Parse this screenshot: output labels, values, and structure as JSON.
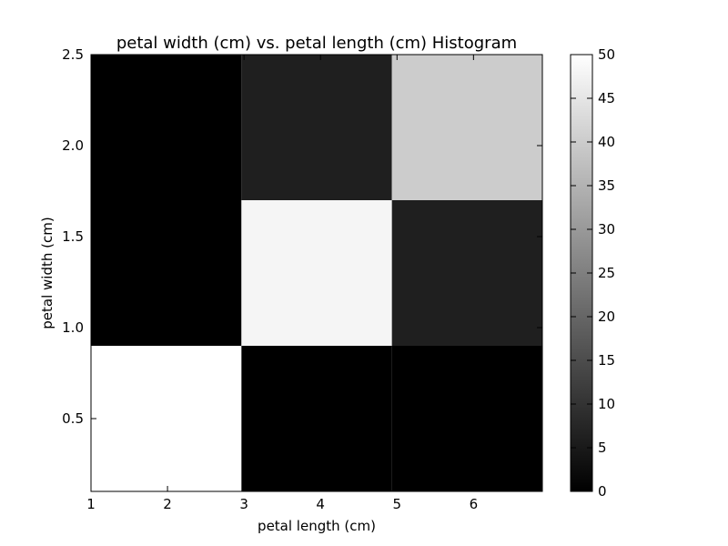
{
  "chart_data": {
    "type": "heatmap",
    "title": "petal width (cm) vs. petal length (cm) Histogram",
    "xlabel": "petal length (cm)",
    "ylabel": "petal width (cm)",
    "xlim": [
      1,
      6.9
    ],
    "ylim": [
      0.1,
      2.5
    ],
    "x_ticks": [
      1,
      2,
      3,
      4,
      5,
      6
    ],
    "y_ticks": [
      0.5,
      1.0,
      1.5,
      2.0,
      2.5
    ],
    "x_bin_edges": [
      1.0,
      2.966667,
      4.933333,
      6.9
    ],
    "y_bin_edges": [
      0.1,
      0.9,
      1.7,
      2.5
    ],
    "counts": [
      [
        50,
        0,
        0
      ],
      [
        0,
        48,
        6
      ],
      [
        0,
        6,
        40
      ]
    ],
    "counts_layout": "rows ordered bottom-to-top by petal width bin, columns left-to-right by petal length bin",
    "colormap": "gray",
    "colorbar": {
      "min": 0,
      "max": 50,
      "ticks": [
        0,
        5,
        10,
        15,
        20,
        25,
        30,
        35,
        40,
        45,
        50
      ]
    },
    "grid": false
  },
  "colors": {
    "low": "#000000",
    "high": "#ffffff",
    "axis": "#000000",
    "background": "#ffffff"
  }
}
